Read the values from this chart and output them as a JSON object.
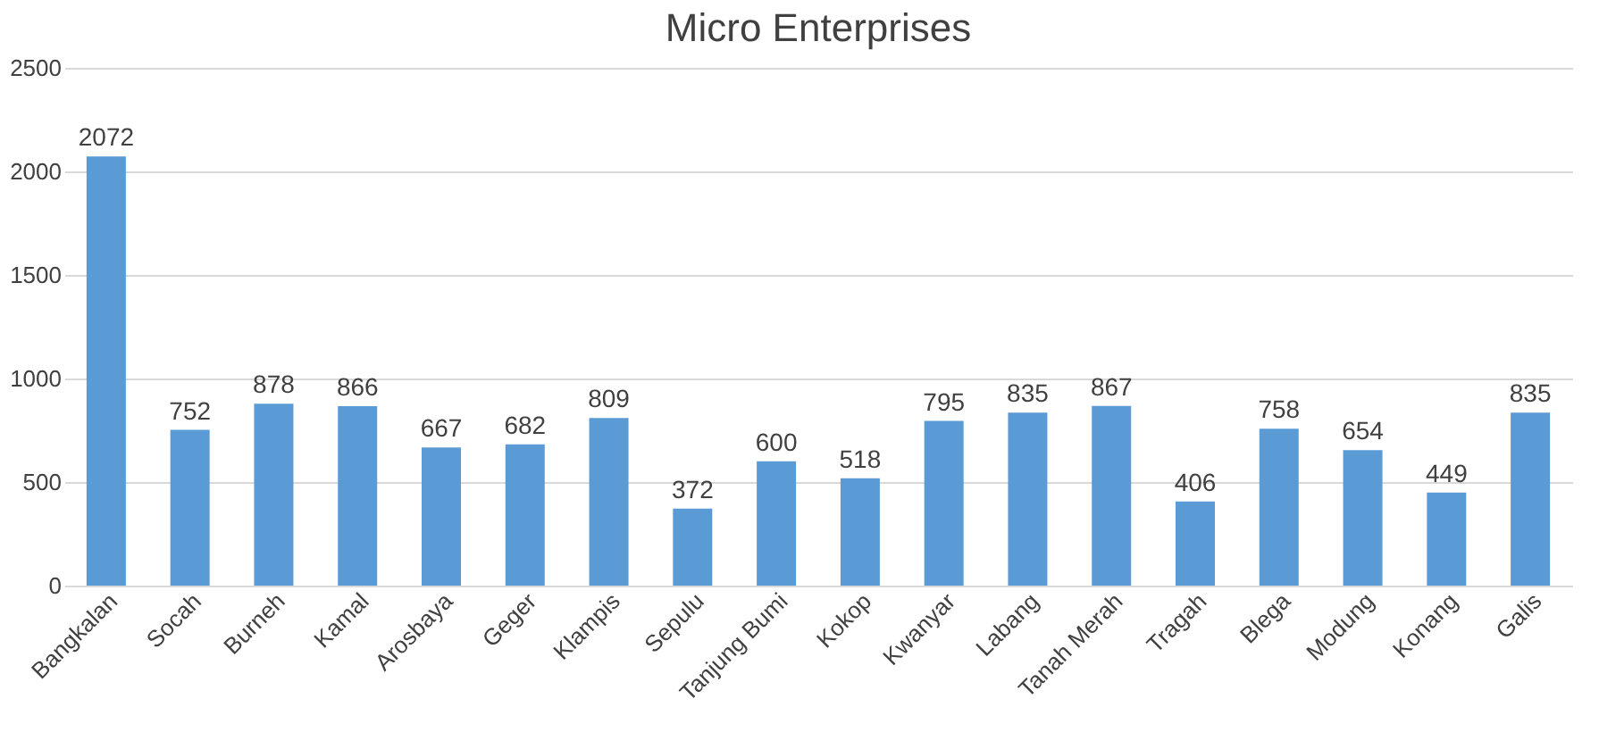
{
  "chart_data": {
    "type": "bar",
    "title": "Micro Enterprises",
    "categories": [
      "Bangkalan",
      "Socah",
      "Burneh",
      "Kamal",
      "Arosbaya",
      "Geger",
      "Klampis",
      "Sepulu",
      "Tanjung Bumi",
      "Kokop",
      "Kwanyar",
      "Labang",
      "Tanah Merah",
      "Tragah",
      "Blega",
      "Modung",
      "Konang",
      "Galis"
    ],
    "values": [
      2072,
      752,
      878,
      866,
      667,
      682,
      809,
      372,
      600,
      518,
      795,
      835,
      867,
      406,
      758,
      654,
      449,
      835
    ],
    "color": "#5b9bd5",
    "ylim": [
      0,
      2500
    ],
    "yticks": [
      0,
      500,
      1000,
      1500,
      2000,
      2500
    ],
    "grid": "y",
    "data_labels": true
  }
}
